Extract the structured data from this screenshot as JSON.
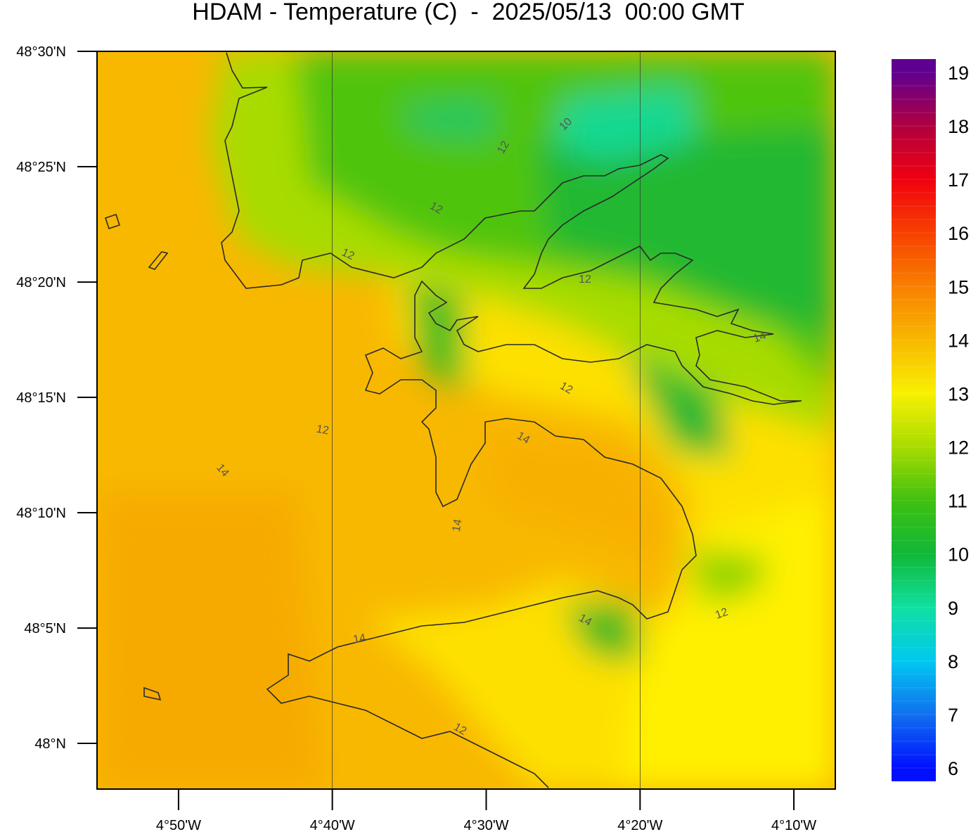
{
  "chart_data": {
    "type": "map",
    "title": "HDAM - Temperature (C)  -  2025/05/13  00:00 GMT",
    "xlim": [
      -4.9216,
      -4.1218
    ],
    "ylim": [
      47.967,
      48.5
    ],
    "xticks": [
      {
        "value": -4.8333,
        "label": "4°50'W"
      },
      {
        "value": -4.6667,
        "label": "4°40'W"
      },
      {
        "value": -4.5,
        "label": "4°30'W"
      },
      {
        "value": -4.3333,
        "label": "4°20'W"
      },
      {
        "value": -4.1667,
        "label": "4°10'W"
      }
    ],
    "yticks": [
      {
        "value": 48.5,
        "label": "48°30'N"
      },
      {
        "value": 48.4167,
        "label": "48°25'N"
      },
      {
        "value": 48.3333,
        "label": "48°20'N"
      },
      {
        "value": 48.25,
        "label": "48°15'N"
      },
      {
        "value": 48.1667,
        "label": "48°10'N"
      },
      {
        "value": 48.0833,
        "label": "48°5'N"
      },
      {
        "value": 48,
        "label": "48°N"
      }
    ],
    "meridians": [
      -4.6667,
      -4.3333
    ],
    "colorbar": {
      "range": [
        5.75,
        19.25
      ],
      "ticks": [
        6,
        7,
        8,
        9,
        10,
        11,
        12,
        13,
        14,
        15,
        16,
        17,
        18,
        19
      ],
      "colors": [
        "#0010ff",
        "#1070f0",
        "#00c8f0",
        "#10e0a0",
        "#10b838",
        "#40c010",
        "#a8dc00",
        "#f8f000",
        "#f8b800",
        "#f88000",
        "#f84000",
        "#f00010",
        "#b00040",
        "#600090"
      ]
    },
    "contour_labels": [
      10,
      12,
      12,
      12,
      12,
      12,
      12,
      14,
      14,
      14,
      14,
      14,
      12,
      12,
      14
    ]
  }
}
